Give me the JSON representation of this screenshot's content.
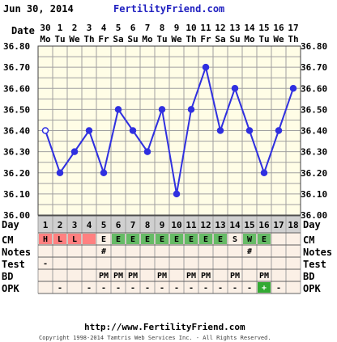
{
  "header": {
    "date_text": "Jun 30, 2014",
    "site_name": "FertilityFriend.com"
  },
  "footer": {
    "url": "http://www.FertilityFriend.com",
    "copyright": "Copyright 1998-2014 Tamtris Web Services Inc. - All Rights Reserved."
  },
  "labels": {
    "date": "Date",
    "day": "Day",
    "cm": "CM",
    "notes": "Notes",
    "test": "Test",
    "bd": "BD",
    "opk": "OPK"
  },
  "colors": {
    "background": "#ffffff",
    "plot_bg": "#fffde6",
    "grid": "#a0a0a0",
    "line": "#3030e0",
    "header_blue": "#2020c0",
    "day_row_bg": "#d0d0d0",
    "row_bg": "#fbf0e6",
    "cm_red": "#ff8080",
    "cm_green": "#66bb66",
    "opk_green": "#33aa33"
  },
  "chart_data": {
    "type": "line",
    "dates": [
      "30",
      "1",
      "2",
      "3",
      "4",
      "5",
      "6",
      "7",
      "8",
      "9",
      "10",
      "11",
      "12",
      "13",
      "14",
      "15",
      "16",
      "17"
    ],
    "weekdays": [
      "Mo",
      "Tu",
      "We",
      "Th",
      "Fr",
      "Sa",
      "Su",
      "Mo",
      "Tu",
      "We",
      "Th",
      "Fr",
      "Sa",
      "Su",
      "Mo",
      "Tu",
      "We",
      "Th"
    ],
    "days": [
      "1",
      "2",
      "3",
      "4",
      "5",
      "6",
      "7",
      "8",
      "9",
      "10",
      "11",
      "12",
      "13",
      "14",
      "15",
      "16",
      "17",
      "18"
    ],
    "y_ticks": [
      "36.00",
      "36.10",
      "36.20",
      "36.30",
      "36.40",
      "36.50",
      "36.60",
      "36.70",
      "36.80"
    ],
    "ylim": [
      36.0,
      36.8
    ],
    "series": [
      {
        "values": [
          36.4,
          36.2,
          36.3,
          36.4,
          36.2,
          36.5,
          36.4,
          36.3,
          36.5,
          36.1,
          36.5,
          36.7,
          36.4,
          36.6,
          36.4,
          36.2,
          36.4,
          36.6
        ],
        "open_points": [
          0
        ]
      }
    ],
    "cm": [
      "H",
      "L",
      "L",
      "",
      "E",
      "E",
      "E",
      "E",
      "E",
      "E",
      "E",
      "E",
      "E",
      "S",
      "W",
      "E",
      "",
      ""
    ],
    "cm_colors": [
      "red",
      "red",
      "red",
      "red",
      "",
      "green",
      "green",
      "green",
      "green",
      "green",
      "green",
      "green",
      "green",
      "",
      "green",
      "green",
      "",
      ""
    ],
    "notes": [
      "",
      "",
      "",
      "",
      "#",
      "",
      "",
      "",
      "",
      "",
      "",
      "",
      "",
      "",
      "#",
      "",
      "",
      ""
    ],
    "test": [
      "-",
      "",
      "",
      "",
      "",
      "",
      "",
      "",
      "",
      "",
      "",
      "",
      "",
      "",
      "",
      "",
      "",
      ""
    ],
    "bd": [
      "",
      "",
      "",
      "",
      "PM",
      "PM",
      "PM",
      "",
      "PM",
      "",
      "PM",
      "PM",
      "",
      "PM",
      "",
      "PM",
      "",
      ""
    ],
    "opk": [
      "",
      "-",
      "",
      "-",
      "-",
      "-",
      "-",
      "-",
      "-",
      "-",
      "-",
      "-",
      "-",
      "-",
      "-",
      "+",
      "-",
      ""
    ]
  }
}
